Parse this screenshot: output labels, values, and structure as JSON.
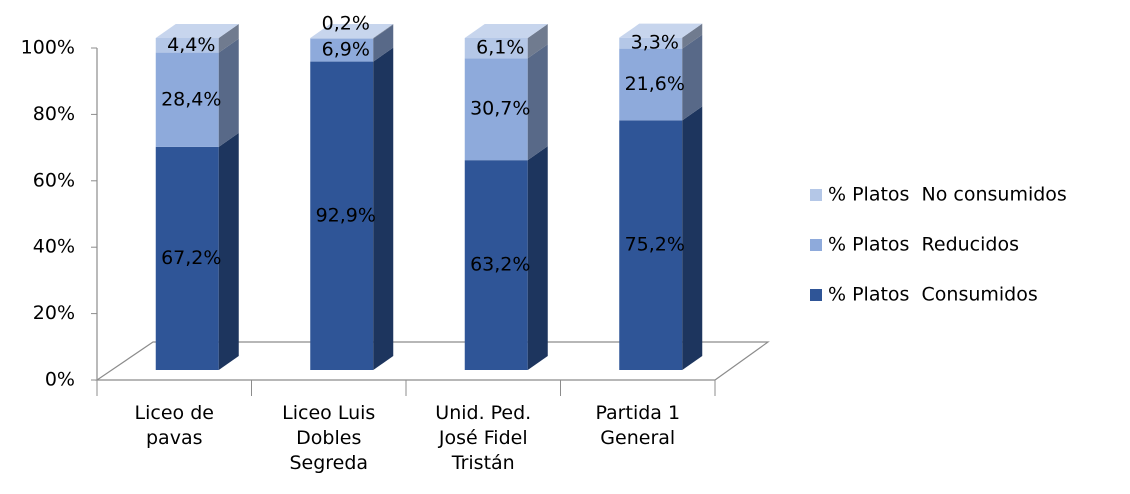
{
  "chart_data": {
    "type": "bar3d_stacked",
    "categories": [
      "Liceo de pavas",
      "Liceo Luis Dobles Segreda",
      "Unid. Ped. José Fidel Tristán",
      "Partida 1 General"
    ],
    "series": [
      {
        "name": "% Platos  Consumidos",
        "color": "#2f5597",
        "values": [
          67.2,
          92.9,
          63.2,
          75.2
        ],
        "value_labels": [
          "67,2%",
          "92,9%",
          "63,2%",
          "75,2%"
        ]
      },
      {
        "name": "% Platos  Reducidos",
        "color": "#8eaadb",
        "values": [
          28.4,
          6.9,
          30.7,
          21.6
        ],
        "value_labels": [
          "28,4%",
          "6,9%",
          "30,7%",
          "21,6%"
        ]
      },
      {
        "name": "% Platos  No consumidos",
        "color": "#b4c7e7",
        "values": [
          4.4,
          0.2,
          6.1,
          3.3
        ],
        "value_labels": [
          "4,4%",
          "0,2%",
          "6,1%",
          "3,3%"
        ]
      }
    ],
    "ylim": [
      0,
      100
    ],
    "yticks": [
      {
        "value": 0,
        "label": "0%"
      },
      {
        "value": 20,
        "label": "20%"
      },
      {
        "value": 40,
        "label": "40%"
      },
      {
        "value": 60,
        "label": "60%"
      },
      {
        "value": 80,
        "label": "80%"
      },
      {
        "value": 100,
        "label": "100%"
      }
    ],
    "legend": "right"
  }
}
